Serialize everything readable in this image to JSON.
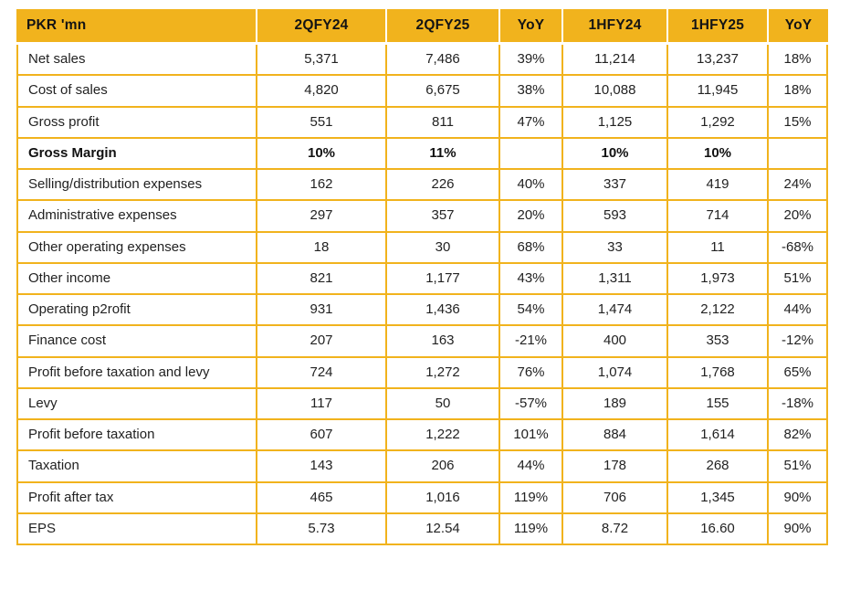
{
  "colors": {
    "accent_gold": "#F1B31D",
    "header_text": "#141414",
    "body_text": "#222222",
    "background": "#ffffff"
  },
  "table": {
    "columns": [
      "PKR 'mn",
      "2QFY24",
      "2QFY25",
      "YoY",
      "1HFY24",
      "1HFY25",
      "YoY"
    ],
    "rows": [
      {
        "label": "Net sales",
        "bold": false,
        "values": [
          "5,371",
          "7,486",
          "39%",
          "11,214",
          "13,237",
          "18%"
        ]
      },
      {
        "label": "Cost of sales",
        "bold": false,
        "values": [
          "4,820",
          "6,675",
          "38%",
          "10,088",
          "11,945",
          "18%"
        ]
      },
      {
        "label": "Gross profit",
        "bold": false,
        "values": [
          "551",
          "811",
          "47%",
          "1,125",
          "1,292",
          "15%"
        ]
      },
      {
        "label": "Gross Margin",
        "bold": true,
        "values": [
          "10%",
          "11%",
          "",
          "10%",
          "10%",
          ""
        ]
      },
      {
        "label": "Selling/distribution expenses",
        "bold": false,
        "values": [
          "162",
          "226",
          "40%",
          "337",
          "419",
          "24%"
        ]
      },
      {
        "label": "Administrative expenses",
        "bold": false,
        "values": [
          "297",
          "357",
          "20%",
          "593",
          "714",
          "20%"
        ]
      },
      {
        "label": "Other operating expenses",
        "bold": false,
        "values": [
          "18",
          "30",
          "68%",
          "33",
          "11",
          "-68%"
        ]
      },
      {
        "label": "Other income",
        "bold": false,
        "values": [
          "821",
          "1,177",
          "43%",
          "1,311",
          "1,973",
          "51%"
        ]
      },
      {
        "label": "Operating p2rofit",
        "bold": false,
        "values": [
          "931",
          "1,436",
          "54%",
          "1,474",
          "2,122",
          "44%"
        ]
      },
      {
        "label": "Finance cost",
        "bold": false,
        "values": [
          "207",
          "163",
          "-21%",
          "400",
          "353",
          "-12%"
        ]
      },
      {
        "label": "Profit before taxation and levy",
        "bold": false,
        "values": [
          "724",
          "1,272",
          "76%",
          "1,074",
          "1,768",
          "65%"
        ]
      },
      {
        "label": "Levy",
        "bold": false,
        "values": [
          "117",
          "50",
          "-57%",
          "189",
          "155",
          "-18%"
        ]
      },
      {
        "label": "Profit before taxation",
        "bold": false,
        "values": [
          "607",
          "1,222",
          "101%",
          "884",
          "1,614",
          "82%"
        ]
      },
      {
        "label": "Taxation",
        "bold": false,
        "values": [
          "143",
          "206",
          "44%",
          "178",
          "268",
          "51%"
        ]
      },
      {
        "label": "Profit after tax",
        "bold": false,
        "values": [
          "465",
          "1,016",
          "119%",
          "706",
          "1,345",
          "90%"
        ]
      },
      {
        "label": "EPS",
        "bold": false,
        "values": [
          "5.73",
          "12.54",
          "119%",
          "8.72",
          "16.60",
          "90%"
        ]
      }
    ]
  }
}
